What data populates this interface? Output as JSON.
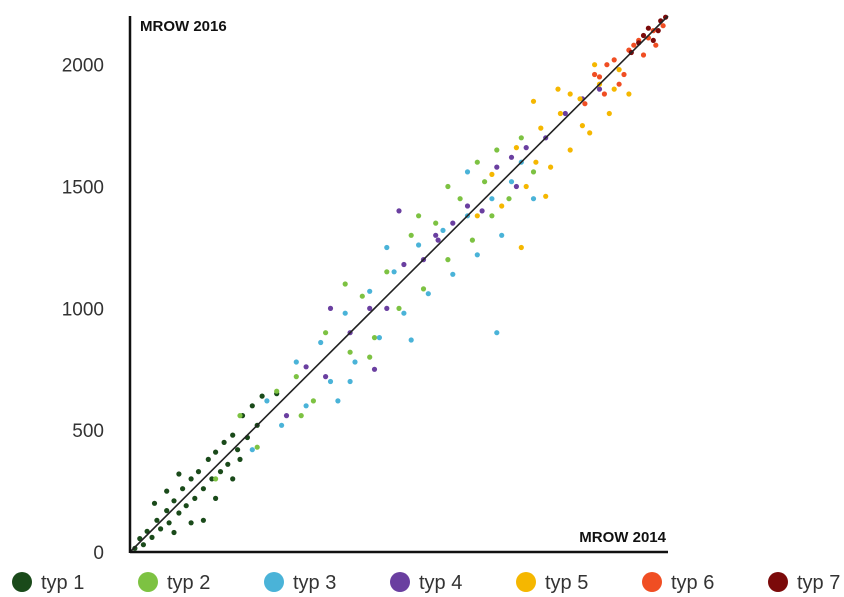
{
  "chart_data": {
    "type": "scatter",
    "title": "",
    "xlabel": "MROW 2014",
    "ylabel": "MROW 2016",
    "xlim": [
      0,
      2200
    ],
    "ylim": [
      0,
      2200
    ],
    "yticks": [
      0,
      500,
      1000,
      1500,
      2000
    ],
    "grid": false,
    "legend_position": "bottom",
    "trend_line": {
      "from": [
        0,
        0
      ],
      "to": [
        2200,
        2200
      ],
      "color": "#222222"
    },
    "series": [
      {
        "name": "typ 1",
        "color": "#1a4a1a",
        "points": [
          [
            20,
            15
          ],
          [
            40,
            55
          ],
          [
            55,
            30
          ],
          [
            70,
            85
          ],
          [
            90,
            60
          ],
          [
            110,
            130
          ],
          [
            125,
            95
          ],
          [
            150,
            170
          ],
          [
            160,
            120
          ],
          [
            180,
            210
          ],
          [
            200,
            160
          ],
          [
            215,
            260
          ],
          [
            230,
            190
          ],
          [
            250,
            300
          ],
          [
            265,
            220
          ],
          [
            280,
            330
          ],
          [
            300,
            260
          ],
          [
            320,
            380
          ],
          [
            335,
            300
          ],
          [
            350,
            410
          ],
          [
            370,
            330
          ],
          [
            385,
            450
          ],
          [
            400,
            360
          ],
          [
            420,
            480
          ],
          [
            440,
            420
          ],
          [
            460,
            560
          ],
          [
            480,
            470
          ],
          [
            500,
            600
          ],
          [
            520,
            520
          ],
          [
            540,
            640
          ],
          [
            300,
            130
          ],
          [
            250,
            120
          ],
          [
            200,
            320
          ],
          [
            150,
            250
          ],
          [
            350,
            220
          ],
          [
            420,
            300
          ],
          [
            100,
            200
          ],
          [
            450,
            380
          ],
          [
            600,
            650
          ],
          [
            180,
            80
          ]
        ]
      },
      {
        "name": "typ 2",
        "color": "#7dc242",
        "points": [
          [
            350,
            300
          ],
          [
            450,
            560
          ],
          [
            520,
            430
          ],
          [
            600,
            660
          ],
          [
            680,
            720
          ],
          [
            750,
            620
          ],
          [
            800,
            900
          ],
          [
            900,
            820
          ],
          [
            950,
            1050
          ],
          [
            1000,
            880
          ],
          [
            1050,
            1150
          ],
          [
            1100,
            1000
          ],
          [
            1150,
            1300
          ],
          [
            1200,
            1080
          ],
          [
            1250,
            1350
          ],
          [
            1300,
            1200
          ],
          [
            1350,
            1450
          ],
          [
            1400,
            1280
          ],
          [
            1450,
            1520
          ],
          [
            1480,
            1380
          ],
          [
            1500,
            1650
          ],
          [
            1550,
            1450
          ],
          [
            1600,
            1700
          ],
          [
            1420,
            1600
          ],
          [
            1180,
            1380
          ],
          [
            980,
            800
          ],
          [
            880,
            1100
          ],
          [
            700,
            560
          ],
          [
            1300,
            1500
          ],
          [
            1650,
            1560
          ]
        ]
      },
      {
        "name": "typ 3",
        "color": "#4ab3d8",
        "points": [
          [
            500,
            420
          ],
          [
            560,
            620
          ],
          [
            620,
            520
          ],
          [
            680,
            780
          ],
          [
            720,
            600
          ],
          [
            780,
            860
          ],
          [
            820,
            700
          ],
          [
            880,
            980
          ],
          [
            920,
            780
          ],
          [
            980,
            1070
          ],
          [
            1020,
            880
          ],
          [
            1080,
            1150
          ],
          [
            1120,
            980
          ],
          [
            1180,
            1260
          ],
          [
            1220,
            1060
          ],
          [
            1280,
            1320
          ],
          [
            1320,
            1140
          ],
          [
            1380,
            1380
          ],
          [
            1420,
            1220
          ],
          [
            1480,
            1450
          ],
          [
            1520,
            1300
          ],
          [
            1560,
            1520
          ],
          [
            1600,
            1600
          ],
          [
            1500,
            900
          ],
          [
            900,
            700
          ],
          [
            1050,
            1250
          ],
          [
            850,
            620
          ],
          [
            1380,
            1560
          ],
          [
            1650,
            1450
          ],
          [
            1150,
            870
          ]
        ]
      },
      {
        "name": "typ 4",
        "color": "#6a3fa0",
        "points": [
          [
            640,
            560
          ],
          [
            720,
            760
          ],
          [
            800,
            720
          ],
          [
            900,
            900
          ],
          [
            980,
            1000
          ],
          [
            1050,
            1000
          ],
          [
            1120,
            1180
          ],
          [
            1200,
            1200
          ],
          [
            1260,
            1280
          ],
          [
            1320,
            1350
          ],
          [
            1380,
            1420
          ],
          [
            1440,
            1400
          ],
          [
            1500,
            1580
          ],
          [
            1560,
            1620
          ],
          [
            1620,
            1660
          ],
          [
            1700,
            1700
          ],
          [
            1780,
            1800
          ],
          [
            1850,
            1860
          ],
          [
            1920,
            1900
          ],
          [
            1000,
            750
          ],
          [
            1100,
            1400
          ],
          [
            1250,
            1300
          ],
          [
            1580,
            1500
          ],
          [
            820,
            1000
          ]
        ]
      },
      {
        "name": "typ 5",
        "color": "#f5b700",
        "points": [
          [
            1420,
            1380
          ],
          [
            1480,
            1550
          ],
          [
            1520,
            1420
          ],
          [
            1580,
            1660
          ],
          [
            1620,
            1500
          ],
          [
            1680,
            1740
          ],
          [
            1720,
            1580
          ],
          [
            1760,
            1800
          ],
          [
            1800,
            1650
          ],
          [
            1840,
            1860
          ],
          [
            1880,
            1720
          ],
          [
            1920,
            1920
          ],
          [
            1960,
            1800
          ],
          [
            2000,
            1980
          ],
          [
            2040,
            1880
          ],
          [
            1700,
            1460
          ],
          [
            1800,
            1880
          ],
          [
            1660,
            1600
          ],
          [
            1900,
            2000
          ],
          [
            1600,
            1250
          ],
          [
            1750,
            1900
          ],
          [
            1980,
            1900
          ],
          [
            1850,
            1750
          ],
          [
            1650,
            1850
          ]
        ]
      },
      {
        "name": "typ 6",
        "color": "#f04e23",
        "points": [
          [
            1860,
            1840
          ],
          [
            1900,
            1960
          ],
          [
            1940,
            1880
          ],
          [
            1980,
            2020
          ],
          [
            2020,
            1960
          ],
          [
            2060,
            2080
          ],
          [
            2100,
            2040
          ],
          [
            2140,
            2140
          ],
          [
            2180,
            2160
          ],
          [
            1950,
            2000
          ],
          [
            2000,
            1920
          ],
          [
            2080,
            2100
          ],
          [
            1920,
            1950
          ],
          [
            2120,
            2110
          ],
          [
            2040,
            2060
          ],
          [
            2150,
            2080
          ]
        ]
      },
      {
        "name": "typ 7",
        "color": "#7b0a0a",
        "points": [
          [
            2050,
            2050
          ],
          [
            2100,
            2120
          ],
          [
            2140,
            2100
          ],
          [
            2170,
            2180
          ],
          [
            2190,
            2195
          ],
          [
            2120,
            2150
          ],
          [
            2160,
            2140
          ],
          [
            2080,
            2090
          ]
        ]
      }
    ]
  }
}
